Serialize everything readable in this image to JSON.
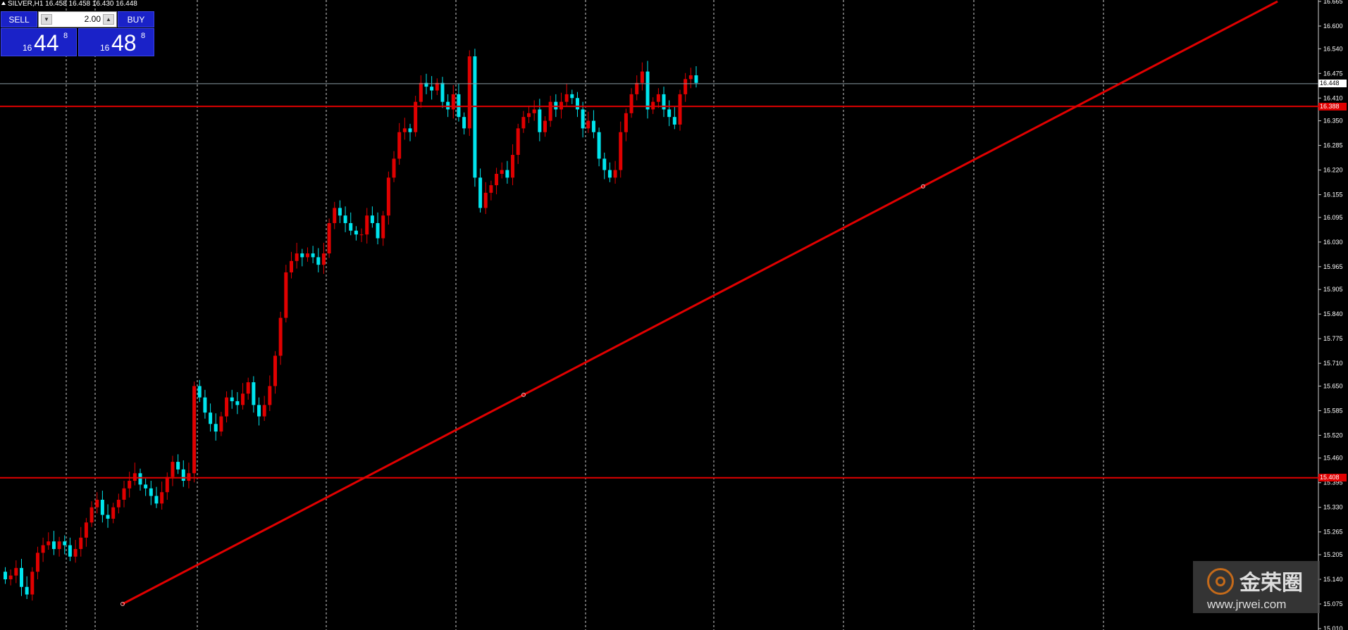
{
  "header": {
    "symbol_info": "SILVER,H1  16.458 16.458 16.430 16.448"
  },
  "trade_panel": {
    "sell_label": "SELL",
    "buy_label": "BUY",
    "lot_value": "2.00",
    "sell_price": {
      "prefix": "16",
      "big": "44",
      "sup": "8"
    },
    "buy_price": {
      "prefix": "16",
      "big": "48",
      "sup": "8"
    }
  },
  "price_tags": {
    "current": "16.448",
    "resistance": "16.388",
    "support": "15.408"
  },
  "watermark": {
    "name": "金荣圈",
    "url": "www.jrwei.com"
  },
  "colors": {
    "background": "#000000",
    "bull": "#e00000",
    "bear": "#00e5ee",
    "lines": "#e00000",
    "grid": "#cccccc"
  },
  "chart_data": {
    "type": "candlestick",
    "symbol": "SILVER",
    "timeframe": "H1",
    "y_ticks": [
      "16.665",
      "16.600",
      "16.540",
      "16.475",
      "16.410",
      "16.350",
      "16.285",
      "16.220",
      "16.155",
      "16.095",
      "16.030",
      "15.965",
      "15.905",
      "15.840",
      "15.775",
      "15.710",
      "15.650",
      "15.585",
      "15.520",
      "15.460",
      "15.395",
      "15.330",
      "15.265",
      "15.205",
      "15.140",
      "15.075",
      "15.010"
    ],
    "ylim": [
      15.01,
      16.665
    ],
    "horizontal_lines": [
      16.388,
      15.408
    ],
    "current_price": 16.448,
    "trendline": {
      "start": 15.075,
      "end": 16.665
    },
    "closes": [
      15.14,
      15.15,
      15.17,
      15.12,
      15.1,
      15.16,
      15.21,
      15.23,
      15.24,
      15.22,
      15.24,
      15.23,
      15.2,
      15.22,
      15.25,
      15.29,
      15.33,
      15.35,
      15.31,
      15.3,
      15.33,
      15.35,
      15.38,
      15.4,
      15.42,
      15.39,
      15.38,
      15.36,
      15.34,
      15.37,
      15.41,
      15.45,
      15.43,
      15.4,
      15.42,
      15.65,
      15.62,
      15.58,
      15.55,
      15.53,
      15.57,
      15.62,
      15.61,
      15.6,
      15.63,
      15.66,
      15.6,
      15.57,
      15.6,
      15.65,
      15.73,
      15.83,
      15.95,
      15.98,
      16.0,
      15.99,
      16.0,
      15.99,
      15.97,
      16.0,
      16.08,
      16.12,
      16.1,
      16.08,
      16.06,
      16.05,
      16.05,
      16.1,
      16.08,
      16.04,
      16.1,
      16.2,
      16.25,
      16.32,
      16.33,
      16.32,
      16.4,
      16.45,
      16.44,
      16.43,
      16.45,
      16.4,
      16.38,
      16.42,
      16.36,
      16.33,
      16.52,
      16.2,
      16.12,
      16.16,
      16.18,
      16.21,
      16.22,
      16.2,
      16.26,
      16.33,
      16.36,
      16.37,
      16.38,
      16.32,
      16.35,
      16.4,
      16.38,
      16.4,
      16.42,
      16.41,
      16.38,
      16.33,
      16.35,
      16.32,
      16.25,
      16.22,
      16.2,
      16.22,
      16.32,
      16.37,
      16.42,
      16.45,
      16.48,
      16.38,
      16.4,
      16.42,
      16.38,
      16.36,
      16.34,
      16.42,
      16.46,
      16.47,
      16.45
    ]
  }
}
